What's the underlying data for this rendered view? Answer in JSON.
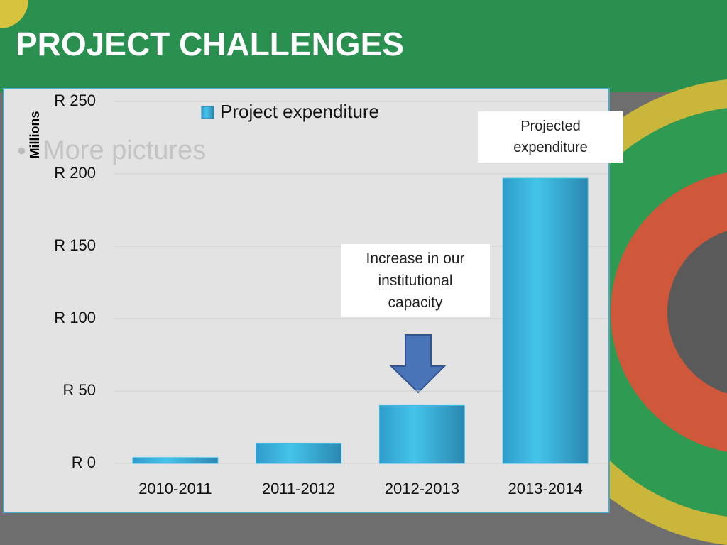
{
  "chart_data": {
    "type": "bar",
    "title": "PROJECT CHALLENGES",
    "bullet": "More pictures",
    "ylabel": "Millions",
    "categories": [
      "2010-2011",
      "2011-2012",
      "2012-2013",
      "2013-2014"
    ],
    "series": [
      {
        "name": "Project expenditure",
        "color": "#3bbde3",
        "values": [
          4,
          14,
          40,
          197
        ]
      }
    ],
    "ylim": [
      0,
      250
    ],
    "yticks": [
      {
        "value": 0,
        "label": "R 0"
      },
      {
        "value": 50,
        "label": "R 50"
      },
      {
        "value": 100,
        "label": "R 100"
      },
      {
        "value": 150,
        "label": "R 150"
      },
      {
        "value": 200,
        "label": "R 200"
      },
      {
        "value": 250,
        "label": "R 250"
      }
    ],
    "grid": true,
    "legend": "top",
    "annotations": [
      "Increase in our institutional capacity",
      "Projected expenditure"
    ]
  }
}
